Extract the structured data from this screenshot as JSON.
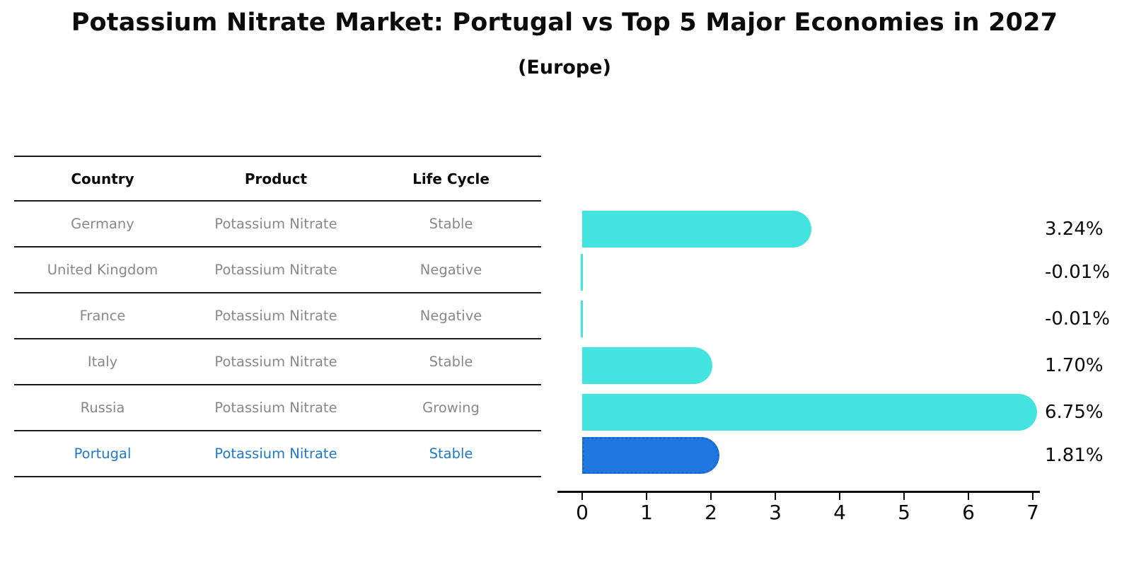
{
  "title": "Potassium Nitrate Market: Portugal vs Top 5 Major Economies in 2027",
  "subtitle": "(Europe)",
  "table": {
    "headers": [
      "Country",
      "Product",
      "Life Cycle"
    ],
    "rows": [
      {
        "country": "Germany",
        "product": "Potassium Nitrate",
        "life_cycle": "Stable",
        "highlighted": false
      },
      {
        "country": "United Kingdom",
        "product": "Potassium Nitrate",
        "life_cycle": "Negative",
        "highlighted": false
      },
      {
        "country": "France",
        "product": "Potassium Nitrate",
        "life_cycle": "Negative",
        "highlighted": false
      },
      {
        "country": "Italy",
        "product": "Potassium Nitrate",
        "life_cycle": "Stable",
        "highlighted": false
      },
      {
        "country": "Russia",
        "product": "Potassium Nitrate",
        "life_cycle": "Growing",
        "highlighted": false
      },
      {
        "country": "Portugal",
        "product": "Potassium Nitrate",
        "life_cycle": "Stable",
        "highlighted": true
      }
    ]
  },
  "chart_data": {
    "type": "bar",
    "orientation": "horizontal",
    "title": "Potassium Nitrate Market: Portugal vs Top 5 Major Economies in 2027",
    "subtitle": "(Europe)",
    "categories": [
      "Germany",
      "United Kingdom",
      "France",
      "Italy",
      "Russia",
      "Portugal"
    ],
    "values": [
      3.24,
      -0.01,
      -0.01,
      1.7,
      6.75,
      1.81
    ],
    "value_labels": [
      "3.24%",
      "-0.01%",
      "-0.01%",
      "1.70%",
      "6.75%",
      "1.81%"
    ],
    "xlabel": "",
    "ylabel": "",
    "xlim": [
      0,
      7
    ],
    "xticks": [
      0,
      1,
      2,
      3,
      4,
      5,
      6,
      7
    ],
    "grid": false,
    "legend": false,
    "bar_color": "#43E4DF",
    "highlight_bar_color": "#2077DF",
    "highlight_index": 5
  },
  "colors": {
    "accent_cyan": "#43E4DF",
    "accent_blue": "#2077DF",
    "highlight_border_blue": "#1A67CF",
    "highlight_text_blue": "#1F78C8",
    "table_text_gray": "#888888",
    "text_black": "#0A0A0A"
  }
}
